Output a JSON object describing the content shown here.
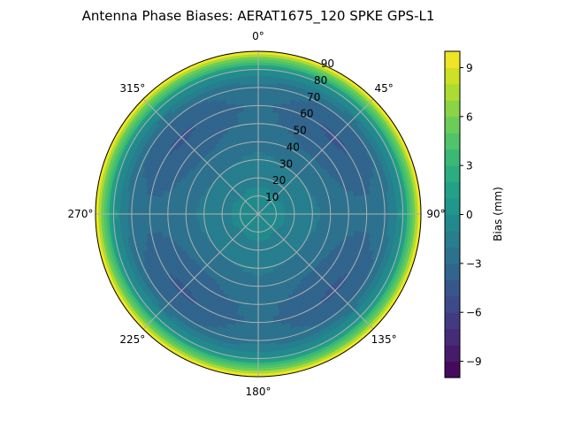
{
  "chart_data": {
    "type": "heatmap",
    "projection": "polar",
    "title": "Antenna Phase Biases: AERAT1675_120   SPKE GPS-L1",
    "colormap": "viridis",
    "colorbar": {
      "label": "Bias (mm)",
      "range": [
        -10,
        10
      ],
      "levels_step": 1,
      "ticks": [
        9,
        6,
        3,
        0,
        -3,
        -6,
        -9
      ],
      "tick_labels": [
        "9",
        "6",
        "3",
        "0",
        "−3",
        "−6",
        "−9"
      ]
    },
    "angular_axis": {
      "direction": "clockwise",
      "zero_location": "top",
      "tick_labels": [
        "0°",
        "45°",
        "90°",
        "135°",
        "180°",
        "225°",
        "270°",
        "315°"
      ]
    },
    "radial_axis": {
      "range": [
        0,
        90
      ],
      "ticks": [
        10,
        20,
        30,
        40,
        50,
        60,
        70,
        80,
        90
      ],
      "tick_labels": [
        "10",
        "20",
        "30",
        "40",
        "50",
        "60",
        "70",
        "80",
        "90"
      ]
    },
    "grid": true,
    "azimuth": [
      0,
      45,
      90,
      135,
      180,
      225,
      270,
      315
    ],
    "zenith": [
      0,
      10,
      20,
      30,
      40,
      50,
      60,
      70,
      75,
      80,
      85,
      90
    ],
    "values_by_zenith": [
      [
        -0.5,
        -0.5,
        -0.5,
        -0.5,
        -0.5,
        -0.5,
        -0.5,
        -0.5
      ],
      [
        -0.8,
        -0.8,
        -0.8,
        -0.8,
        -0.8,
        -0.8,
        -0.8,
        -0.8
      ],
      [
        -1.2,
        -1.3,
        -1.2,
        -1.3,
        -1.2,
        -1.3,
        -1.2,
        -1.3
      ],
      [
        -1.8,
        -2.0,
        -1.8,
        -2.0,
        -1.8,
        -2.0,
        -1.8,
        -2.0
      ],
      [
        -2.3,
        -2.8,
        -2.3,
        -2.8,
        -2.3,
        -2.8,
        -2.3,
        -2.8
      ],
      [
        -2.8,
        -3.5,
        -2.8,
        -3.5,
        -2.8,
        -3.5,
        -2.8,
        -3.5
      ],
      [
        -2.9,
        -4.2,
        -2.9,
        -4.2,
        -2.9,
        -4.2,
        -2.9,
        -4.2
      ],
      [
        -2.5,
        -3.2,
        -2.5,
        -3.2,
        -2.5,
        -3.2,
        -2.5,
        -3.2
      ],
      [
        -1.5,
        -1.8,
        -1.5,
        -1.8,
        -1.5,
        -1.8,
        -1.5,
        -1.8
      ],
      [
        0.5,
        0.5,
        0.5,
        0.5,
        0.5,
        0.5,
        0.5,
        0.5
      ],
      [
        4.5,
        4.5,
        4.5,
        4.5,
        4.5,
        4.5,
        4.5,
        4.5
      ],
      [
        10,
        10,
        10,
        10,
        10,
        10,
        10,
        10
      ]
    ]
  }
}
